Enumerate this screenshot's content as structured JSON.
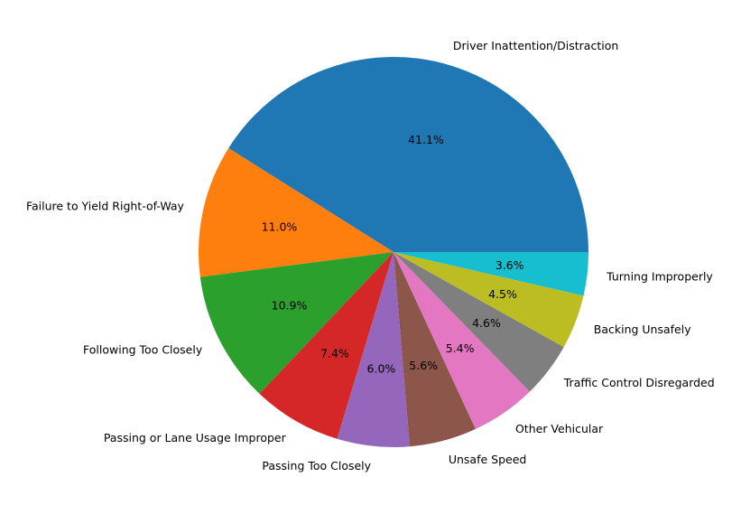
{
  "chart_data": {
    "type": "pie",
    "title": "",
    "start_angle_deg": 0,
    "direction": "counterclockwise",
    "slices": [
      {
        "label": "Driver Inattention/Distraction",
        "value": 41.1,
        "pct_text": "41.1%",
        "color": "#1f77b4"
      },
      {
        "label": "Failure to Yield Right-of-Way",
        "value": 11.0,
        "pct_text": "11.0%",
        "color": "#ff7f0e"
      },
      {
        "label": "Following Too Closely",
        "value": 10.9,
        "pct_text": "10.9%",
        "color": "#2ca02c"
      },
      {
        "label": "Passing or Lane Usage Improper",
        "value": 7.4,
        "pct_text": "7.4%",
        "color": "#d62728"
      },
      {
        "label": "Passing Too Closely",
        "value": 6.0,
        "pct_text": "6.0%",
        "color": "#9467bd"
      },
      {
        "label": "Unsafe Speed",
        "value": 5.6,
        "pct_text": "5.6%",
        "color": "#8c564b"
      },
      {
        "label": "Other Vehicular",
        "value": 5.4,
        "pct_text": "5.4%",
        "color": "#e377c2"
      },
      {
        "label": "Traffic Control Disregarded",
        "value": 4.6,
        "pct_text": "4.6%",
        "color": "#7f7f7f"
      },
      {
        "label": "Backing Unsafely",
        "value": 4.5,
        "pct_text": "4.5%",
        "color": "#bcbd22"
      },
      {
        "label": "Turning Improperly",
        "value": 3.6,
        "pct_text": "3.6%",
        "color": "#17becf"
      }
    ]
  }
}
